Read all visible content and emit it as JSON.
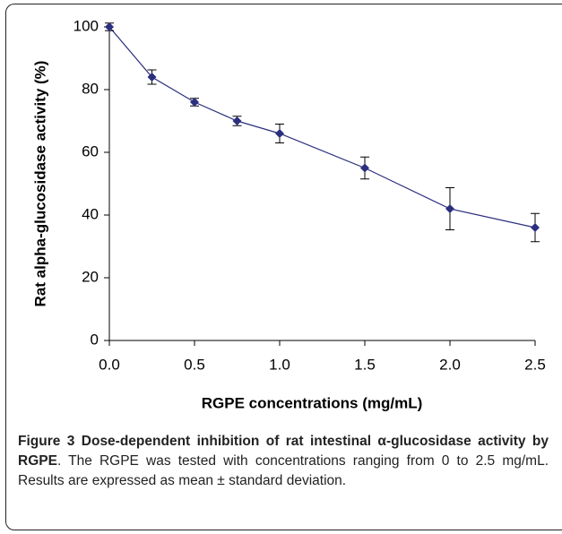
{
  "chart_data": {
    "type": "line",
    "x_label": "RGPE concentrations (mg/mL)",
    "y_label": "Rat alpha-glucosidase activity (%)",
    "x": [
      0,
      0.25,
      0.5,
      0.75,
      1.0,
      1.5,
      2.0,
      2.5
    ],
    "values": [
      100,
      84,
      76,
      70,
      66,
      55,
      42,
      36
    ],
    "errors": [
      1.2,
      2.3,
      1.2,
      1.5,
      3.0,
      3.5,
      6.7,
      4.5
    ],
    "color": "#2b2f7e",
    "xlim": [
      0,
      2.5
    ],
    "xticks": [
      {
        "value": 0,
        "label": "0.0"
      },
      0.5,
      {
        "value": 1,
        "label": "1.0"
      },
      1.5,
      {
        "value": 2,
        "label": "2.0"
      },
      2.5
    ],
    "ylim": [
      0,
      100
    ],
    "yticks": [
      0,
      20,
      40,
      60,
      80,
      100
    ]
  },
  "caption": {
    "title": "Figure 3 Dose-dependent inhibition of rat intestinal α-glucosidase activity by RGPE",
    "text": ". The RGPE was tested with concentrations ranging from 0 to 2.5 mg/mL. Results are expressed as mean ± standard deviation."
  }
}
